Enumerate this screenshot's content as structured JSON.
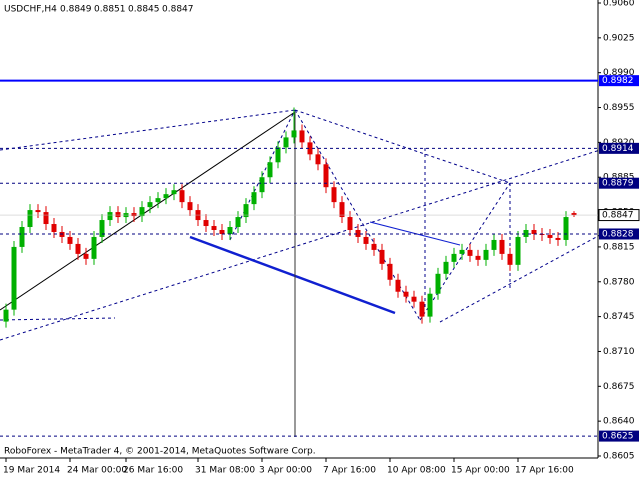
{
  "chart_data": {
    "type": "candlestick",
    "title": "USDCHF,H4",
    "footer": "RoboForex - MetaTrader 4, © 2001-2014, MetaQuotes Software Corp.",
    "up_color": "#00b000",
    "down_color": "#e00000",
    "categories": [
      "19 Mar 2014",
      null,
      null,
      null,
      null,
      null,
      null,
      null,
      "24 Mar 00:00",
      null,
      null,
      null,
      null,
      null,
      null,
      "26 Mar 16:00",
      null,
      null,
      null,
      null,
      null,
      null,
      null,
      null,
      "31 Mar 08:00",
      null,
      null,
      null,
      null,
      null,
      null,
      null,
      "3 Apr 00:00",
      null,
      null,
      null,
      null,
      null,
      null,
      null,
      "7 Apr 16:00",
      null,
      null,
      null,
      null,
      null,
      null,
      null,
      "10 Apr 08:00",
      null,
      null,
      null,
      null,
      null,
      null,
      null,
      "15 Apr 00:00",
      null,
      null,
      null,
      null,
      null,
      null,
      null,
      "17 Apr 16:00",
      null,
      null,
      null,
      null,
      null,
      null,
      null
    ],
    "open": [
      0.874,
      0.8752,
      0.8815,
      0.8835,
      0.8852,
      0.885,
      0.8838,
      0.883,
      0.8825,
      0.8818,
      0.8808,
      0.8803,
      0.8825,
      0.8842,
      0.885,
      0.8845,
      0.8849,
      0.8846,
      0.8855,
      0.886,
      0.8864,
      0.8868,
      0.8872,
      0.886,
      0.8852,
      0.8842,
      0.8836,
      0.8832,
      0.8828,
      0.8835,
      0.8845,
      0.8858,
      0.887,
      0.8885,
      0.89,
      0.8915,
      0.8925,
      0.8932,
      0.892,
      0.8908,
      0.8898,
      0.8875,
      0.886,
      0.8845,
      0.8832,
      0.8825,
      0.8818,
      0.8812,
      0.8798,
      0.8782,
      0.877,
      0.8765,
      0.876,
      0.8745,
      0.8768,
      0.8788,
      0.88,
      0.8808,
      0.8812,
      0.8806,
      0.8802,
      0.8812,
      0.8822,
      0.8808,
      0.8797,
      0.8825,
      0.8832,
      0.8828,
      0.8827,
      0.8824,
      0.8822,
      0.8849
    ],
    "high": [
      0.8758,
      0.8821,
      0.8841,
      0.8858,
      0.8858,
      0.8856,
      0.8844,
      0.8836,
      0.8831,
      0.8824,
      0.8814,
      0.8831,
      0.8848,
      0.8856,
      0.8856,
      0.8855,
      0.8855,
      0.8861,
      0.8866,
      0.887,
      0.8874,
      0.8878,
      0.8878,
      0.8866,
      0.8858,
      0.8848,
      0.8842,
      0.8838,
      0.8841,
      0.8851,
      0.8864,
      0.8876,
      0.8891,
      0.8906,
      0.8921,
      0.8931,
      0.8955,
      0.8938,
      0.8926,
      0.8914,
      0.8904,
      0.8881,
      0.8866,
      0.8851,
      0.8838,
      0.8831,
      0.8824,
      0.8818,
      0.8804,
      0.8788,
      0.8776,
      0.8771,
      0.8766,
      0.8774,
      0.8794,
      0.8806,
      0.8814,
      0.8818,
      0.8818,
      0.8812,
      0.8818,
      0.8828,
      0.8828,
      0.8814,
      0.8831,
      0.8838,
      0.8838,
      0.8834,
      0.8833,
      0.883,
      0.8851,
      0.8851
    ],
    "low": [
      0.8734,
      0.8746,
      0.8809,
      0.8829,
      0.8844,
      0.8832,
      0.8824,
      0.8819,
      0.8812,
      0.8802,
      0.8797,
      0.8797,
      0.8819,
      0.8836,
      0.8839,
      0.8839,
      0.884,
      0.884,
      0.8849,
      0.8854,
      0.8858,
      0.8862,
      0.8854,
      0.8846,
      0.8836,
      0.883,
      0.8826,
      0.8822,
      0.8822,
      0.8829,
      0.8839,
      0.8852,
      0.8864,
      0.8879,
      0.8894,
      0.8909,
      0.8919,
      0.8914,
      0.8902,
      0.8892,
      0.8869,
      0.8854,
      0.8839,
      0.8826,
      0.8819,
      0.8812,
      0.8806,
      0.8792,
      0.8776,
      0.8764,
      0.8759,
      0.8754,
      0.8738,
      0.8739,
      0.8762,
      0.8782,
      0.8794,
      0.8802,
      0.88,
      0.8796,
      0.8796,
      0.8806,
      0.8802,
      0.8791,
      0.8791,
      0.8819,
      0.8822,
      0.8821,
      0.8818,
      0.8816,
      0.8816,
      0.8845
    ],
    "close": [
      0.8752,
      0.8815,
      0.8835,
      0.8852,
      0.885,
      0.8838,
      0.883,
      0.8825,
      0.8818,
      0.8808,
      0.8803,
      0.8825,
      0.8842,
      0.885,
      0.8845,
      0.8849,
      0.8846,
      0.8855,
      0.886,
      0.8864,
      0.8868,
      0.8872,
      0.886,
      0.8852,
      0.8842,
      0.8836,
      0.8832,
      0.8828,
      0.8835,
      0.8845,
      0.8858,
      0.887,
      0.8885,
      0.89,
      0.8915,
      0.8925,
      0.8932,
      0.892,
      0.8908,
      0.8898,
      0.8875,
      0.886,
      0.8845,
      0.8832,
      0.8825,
      0.8818,
      0.8812,
      0.8798,
      0.8782,
      0.877,
      0.8765,
      0.876,
      0.8745,
      0.8768,
      0.8788,
      0.88,
      0.8808,
      0.8812,
      0.8806,
      0.8802,
      0.8812,
      0.8822,
      0.8808,
      0.8797,
      0.8825,
      0.8832,
      0.8828,
      0.8827,
      0.8824,
      0.8822,
      0.8845,
      0.8847
    ],
    "ylim": [
      0.8605,
      0.906
    ],
    "yticks": [
      {
        "value": 0.906,
        "label": "0.9060"
      },
      {
        "value": 0.9025,
        "label": "0.9025"
      },
      {
        "value": 0.899,
        "label": "0.8990"
      },
      {
        "value": 0.8955,
        "label": "0.8955"
      },
      {
        "value": 0.892,
        "label": "0.8920"
      },
      {
        "value": 0.8885,
        "label": "0.8885"
      },
      {
        "value": 0.885,
        "label": "0.8850"
      },
      {
        "value": 0.8815,
        "label": "0.8815"
      },
      {
        "value": 0.878,
        "label": "0.8780"
      },
      {
        "value": 0.8745,
        "label": "0.8745"
      },
      {
        "value": 0.871,
        "label": "0.8710"
      },
      {
        "value": 0.8675,
        "label": "0.8675"
      },
      {
        "value": 0.864,
        "label": "0.8640"
      },
      {
        "value": 0.8605,
        "label": "0.8605"
      }
    ],
    "levels": [
      {
        "value": 0.8982,
        "color": "#0000ff",
        "style": "solid"
      },
      {
        "value": 0.8914,
        "color": "#000080",
        "style": "dashed"
      },
      {
        "value": 0.8879,
        "color": "#000080",
        "style": "dashed"
      },
      {
        "value": 0.8828,
        "color": "#000080",
        "style": "dashed"
      },
      {
        "value": 0.8625,
        "color": "#000080",
        "style": "dashed"
      }
    ],
    "grid": false
  }
}
